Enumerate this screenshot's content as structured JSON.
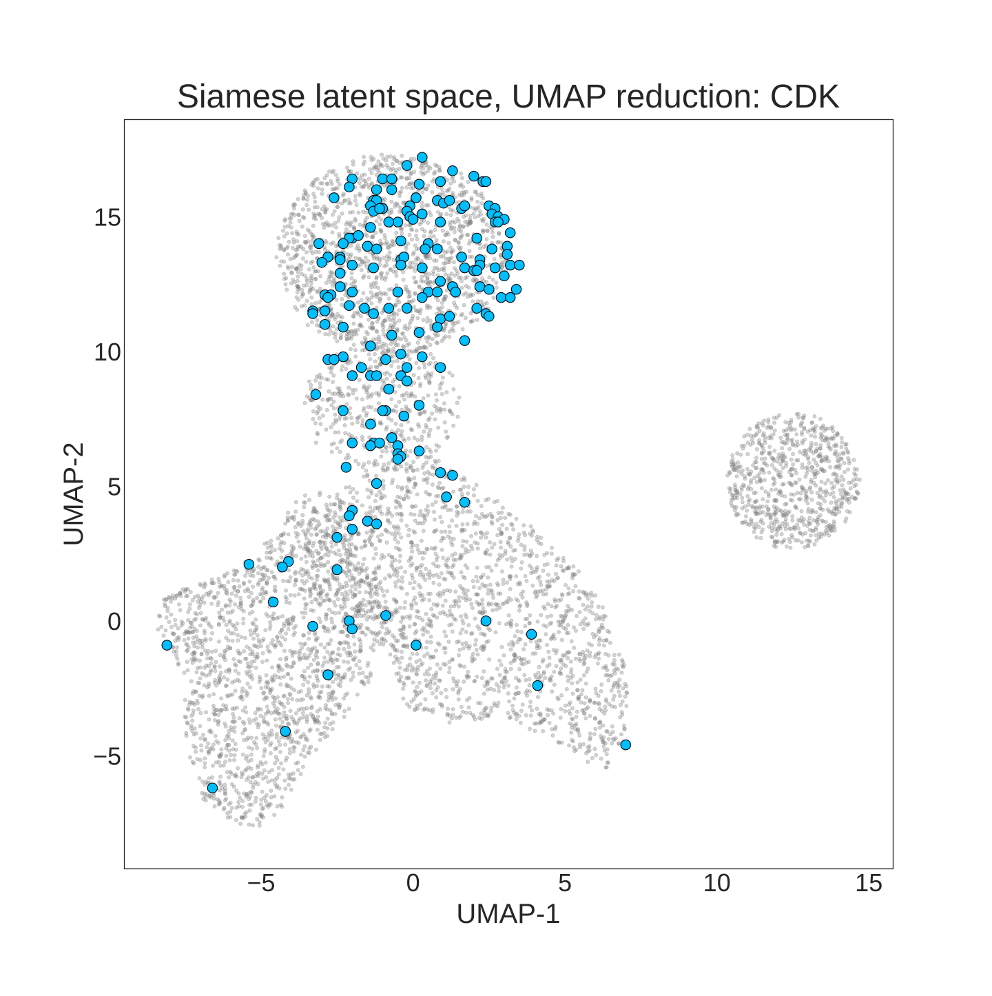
{
  "chart_data": {
    "type": "scatter",
    "title": "Siamese latent space, UMAP reduction: CDK",
    "xlabel": "UMAP-1",
    "ylabel": "UMAP-2",
    "xlim": [
      -9.5,
      15.8
    ],
    "ylim": [
      -9.2,
      18.6
    ],
    "grid": false,
    "legend": "none",
    "x_ticks": [
      {
        "value": -5,
        "label": "−5"
      },
      {
        "value": 0,
        "label": "0"
      },
      {
        "value": 5,
        "label": "5"
      },
      {
        "value": 10,
        "label": "10"
      },
      {
        "value": 15,
        "label": "15"
      }
    ],
    "y_ticks": [
      {
        "value": -5,
        "label": "−5"
      },
      {
        "value": 0,
        "label": "0"
      },
      {
        "value": 5,
        "label": "5"
      },
      {
        "value": 10,
        "label": "10"
      },
      {
        "value": 15,
        "label": "15"
      }
    ],
    "colors": {
      "background_points": "#808080",
      "highlight_fill": "#00bfff",
      "highlight_edge": "#000000"
    },
    "background_regions": [
      {
        "type": "ellipse",
        "cx": -0.7,
        "cy": 13.6,
        "rx": 3.8,
        "ry": 3.7,
        "weight": 0.27
      },
      {
        "type": "ellipse",
        "cx": -1.0,
        "cy": 8.0,
        "rx": 2.6,
        "ry": 2.4,
        "weight": 0.08
      },
      {
        "type": "ellipse",
        "cx": 12.5,
        "cy": 5.2,
        "rx": 2.2,
        "ry": 2.5,
        "weight": 0.13
      },
      {
        "type": "polygon",
        "points": [
          [
            -8.3,
            0.9
          ],
          [
            -6.0,
            1.8
          ],
          [
            -4.5,
            3.2
          ],
          [
            -3.9,
            4.6
          ],
          [
            -2.5,
            4.8
          ],
          [
            -1.8,
            2.2
          ],
          [
            -0.5,
            0.3
          ],
          [
            -1.6,
            -2.6
          ],
          [
            -3.3,
            -5.0
          ],
          [
            -4.5,
            -7.3
          ],
          [
            -5.4,
            -7.9
          ],
          [
            -6.9,
            -6.6
          ],
          [
            -7.5,
            -4.5
          ],
          [
            -7.5,
            -2.0
          ],
          [
            -8.4,
            -0.5
          ]
        ],
        "weight": 0.3
      },
      {
        "type": "polygon",
        "points": [
          [
            -3.5,
            3.6
          ],
          [
            -1.5,
            5.6
          ],
          [
            0.5,
            6.1
          ],
          [
            2.0,
            5.2
          ],
          [
            4.0,
            3.4
          ],
          [
            5.4,
            2.0
          ],
          [
            6.2,
            0.6
          ],
          [
            6.8,
            -0.5
          ],
          [
            7.1,
            -2.7
          ],
          [
            7.0,
            -4.8
          ],
          [
            6.3,
            -5.5
          ],
          [
            4.5,
            -4.4
          ],
          [
            3.0,
            -3.6
          ],
          [
            1.0,
            -3.8
          ],
          [
            -0.3,
            -3.3
          ],
          [
            -0.8,
            -1.0
          ],
          [
            -1.8,
            0.2
          ],
          [
            -3.3,
            1.0
          ]
        ],
        "weight": 0.32
      }
    ],
    "background_point_count": 5600,
    "series": [
      {
        "points": [
          [
            0.3,
            17.2
          ],
          [
            -0.2,
            16.9
          ],
          [
            1.3,
            16.7
          ],
          [
            -2.0,
            16.4
          ],
          [
            -1.0,
            16.4
          ],
          [
            -0.7,
            16.4
          ],
          [
            2.0,
            16.5
          ],
          [
            2.3,
            16.3
          ],
          [
            2.4,
            16.3
          ],
          [
            0.9,
            16.3
          ],
          [
            -2.1,
            16.1
          ],
          [
            -0.7,
            16.0
          ],
          [
            -1.2,
            16.0
          ],
          [
            0.2,
            16.2
          ],
          [
            -2.6,
            15.7
          ],
          [
            -1.3,
            15.6
          ],
          [
            -1.2,
            15.6
          ],
          [
            0.8,
            15.6
          ],
          [
            1.0,
            15.5
          ],
          [
            1.2,
            15.6
          ],
          [
            -1.4,
            15.4
          ],
          [
            -0.1,
            15.4
          ],
          [
            0.1,
            15.7
          ],
          [
            1.6,
            15.3
          ],
          [
            1.7,
            15.4
          ],
          [
            2.5,
            15.4
          ],
          [
            2.7,
            15.3
          ],
          [
            -0.2,
            15.2
          ],
          [
            -1.0,
            15.3
          ],
          [
            -1.3,
            15.2
          ],
          [
            -1.1,
            15.3
          ],
          [
            0.3,
            15.1
          ],
          [
            2.6,
            15.1
          ],
          [
            2.8,
            15.0
          ],
          [
            3.0,
            14.9
          ],
          [
            -0.1,
            15.0
          ],
          [
            0.0,
            14.9
          ],
          [
            2.7,
            14.8
          ],
          [
            2.8,
            14.8
          ],
          [
            -0.5,
            14.8
          ],
          [
            -0.8,
            14.8
          ],
          [
            0.9,
            14.8
          ],
          [
            -1.4,
            14.6
          ],
          [
            -2.0,
            14.2
          ],
          [
            -2.1,
            14.2
          ],
          [
            -1.8,
            14.3
          ],
          [
            -3.1,
            14.0
          ],
          [
            -2.3,
            14.0
          ],
          [
            -1.5,
            13.9
          ],
          [
            -0.4,
            14.1
          ],
          [
            0.5,
            14.0
          ],
          [
            2.1,
            14.2
          ],
          [
            3.2,
            14.4
          ],
          [
            3.1,
            13.9
          ],
          [
            -1.2,
            13.8
          ],
          [
            0.4,
            13.8
          ],
          [
            0.8,
            13.8
          ],
          [
            2.6,
            13.8
          ],
          [
            -2.8,
            13.5
          ],
          [
            -2.4,
            13.5
          ],
          [
            -2.4,
            13.4
          ],
          [
            -0.4,
            13.4
          ],
          [
            -0.3,
            13.5
          ],
          [
            1.6,
            13.5
          ],
          [
            3.1,
            13.6
          ],
          [
            -3.0,
            13.3
          ],
          [
            -2.0,
            13.2
          ],
          [
            -0.4,
            13.2
          ],
          [
            2.2,
            13.4
          ],
          [
            2.2,
            13.2
          ],
          [
            3.2,
            13.2
          ],
          [
            3.5,
            13.2
          ],
          [
            -1.3,
            13.1
          ],
          [
            0.3,
            13.1
          ],
          [
            1.7,
            13.1
          ],
          [
            2.0,
            13.0
          ],
          [
            2.7,
            13.1
          ],
          [
            2.1,
            13.0
          ],
          [
            3.0,
            12.8
          ],
          [
            -2.4,
            12.9
          ],
          [
            0.9,
            12.6
          ],
          [
            -2.4,
            12.4
          ],
          [
            1.3,
            12.4
          ],
          [
            2.2,
            12.4
          ],
          [
            2.5,
            12.3
          ],
          [
            3.4,
            12.3
          ],
          [
            0.5,
            12.2
          ],
          [
            0.8,
            12.2
          ],
          [
            1.4,
            12.2
          ],
          [
            -2.9,
            12.1
          ],
          [
            -2.7,
            12.1
          ],
          [
            -2.8,
            12.0
          ],
          [
            -2.0,
            12.2
          ],
          [
            -0.5,
            12.2
          ],
          [
            0.3,
            12.0
          ],
          [
            2.9,
            12.0
          ],
          [
            3.2,
            12.0
          ],
          [
            -2.1,
            11.7
          ],
          [
            -1.6,
            11.6
          ],
          [
            -1.3,
            11.4
          ],
          [
            -0.8,
            11.6
          ],
          [
            -0.2,
            11.6
          ],
          [
            2.1,
            11.6
          ],
          [
            -3.3,
            11.5
          ],
          [
            -3.3,
            11.4
          ],
          [
            -2.9,
            11.5
          ],
          [
            2.4,
            11.4
          ],
          [
            2.5,
            11.3
          ],
          [
            0.9,
            11.2
          ],
          [
            1.2,
            11.3
          ],
          [
            -2.9,
            11.0
          ],
          [
            -2.3,
            10.9
          ],
          [
            0.8,
            10.9
          ],
          [
            0.2,
            10.7
          ],
          [
            -0.7,
            10.6
          ],
          [
            1.7,
            10.4
          ],
          [
            -1.4,
            10.2
          ],
          [
            -0.4,
            9.9
          ],
          [
            -2.3,
            9.8
          ],
          [
            -2.8,
            9.7
          ],
          [
            -2.6,
            9.7
          ],
          [
            -0.9,
            9.7
          ],
          [
            0.3,
            9.8
          ],
          [
            -1.7,
            9.4
          ],
          [
            -0.2,
            9.4
          ],
          [
            0.9,
            9.4
          ],
          [
            -2.0,
            9.1
          ],
          [
            -1.4,
            9.1
          ],
          [
            -1.2,
            9.1
          ],
          [
            -0.4,
            9.1
          ],
          [
            -0.2,
            8.9
          ],
          [
            -0.8,
            8.6
          ],
          [
            -3.2,
            8.4
          ],
          [
            0.2,
            8.0
          ],
          [
            -2.3,
            7.8
          ],
          [
            -0.9,
            7.8
          ],
          [
            -1.0,
            7.8
          ],
          [
            -0.3,
            7.6
          ],
          [
            -1.4,
            7.3
          ],
          [
            -0.7,
            6.8
          ],
          [
            -2.0,
            6.6
          ],
          [
            -1.3,
            6.6
          ],
          [
            -1.4,
            6.5
          ],
          [
            -1.1,
            6.6
          ],
          [
            -0.5,
            6.5
          ],
          [
            -0.5,
            6.2
          ],
          [
            -0.4,
            6.1
          ],
          [
            -0.5,
            6.0
          ],
          [
            0.2,
            6.3
          ],
          [
            -2.2,
            5.7
          ],
          [
            0.9,
            5.5
          ],
          [
            1.3,
            5.4
          ],
          [
            -1.2,
            5.1
          ],
          [
            1.1,
            4.6
          ],
          [
            1.7,
            4.4
          ],
          [
            -2.0,
            4.1
          ],
          [
            -2.1,
            3.9
          ],
          [
            -1.5,
            3.7
          ],
          [
            -1.2,
            3.6
          ],
          [
            -2.0,
            3.4
          ],
          [
            -2.5,
            3.1
          ],
          [
            -4.1,
            2.2
          ],
          [
            -4.3,
            2.0
          ],
          [
            -5.4,
            2.1
          ],
          [
            -2.5,
            1.9
          ],
          [
            -4.6,
            0.7
          ],
          [
            -0.9,
            0.2
          ],
          [
            2.4,
            0.0
          ],
          [
            -2.1,
            0.0
          ],
          [
            -2.0,
            -0.3
          ],
          [
            -3.3,
            -0.2
          ],
          [
            3.9,
            -0.5
          ],
          [
            0.1,
            -0.9
          ],
          [
            -8.1,
            -0.9
          ],
          [
            -2.8,
            -2.0
          ],
          [
            4.1,
            -2.4
          ],
          [
            -4.2,
            -4.1
          ],
          [
            7.0,
            -4.6
          ],
          [
            -6.6,
            -6.2
          ]
        ]
      }
    ]
  }
}
